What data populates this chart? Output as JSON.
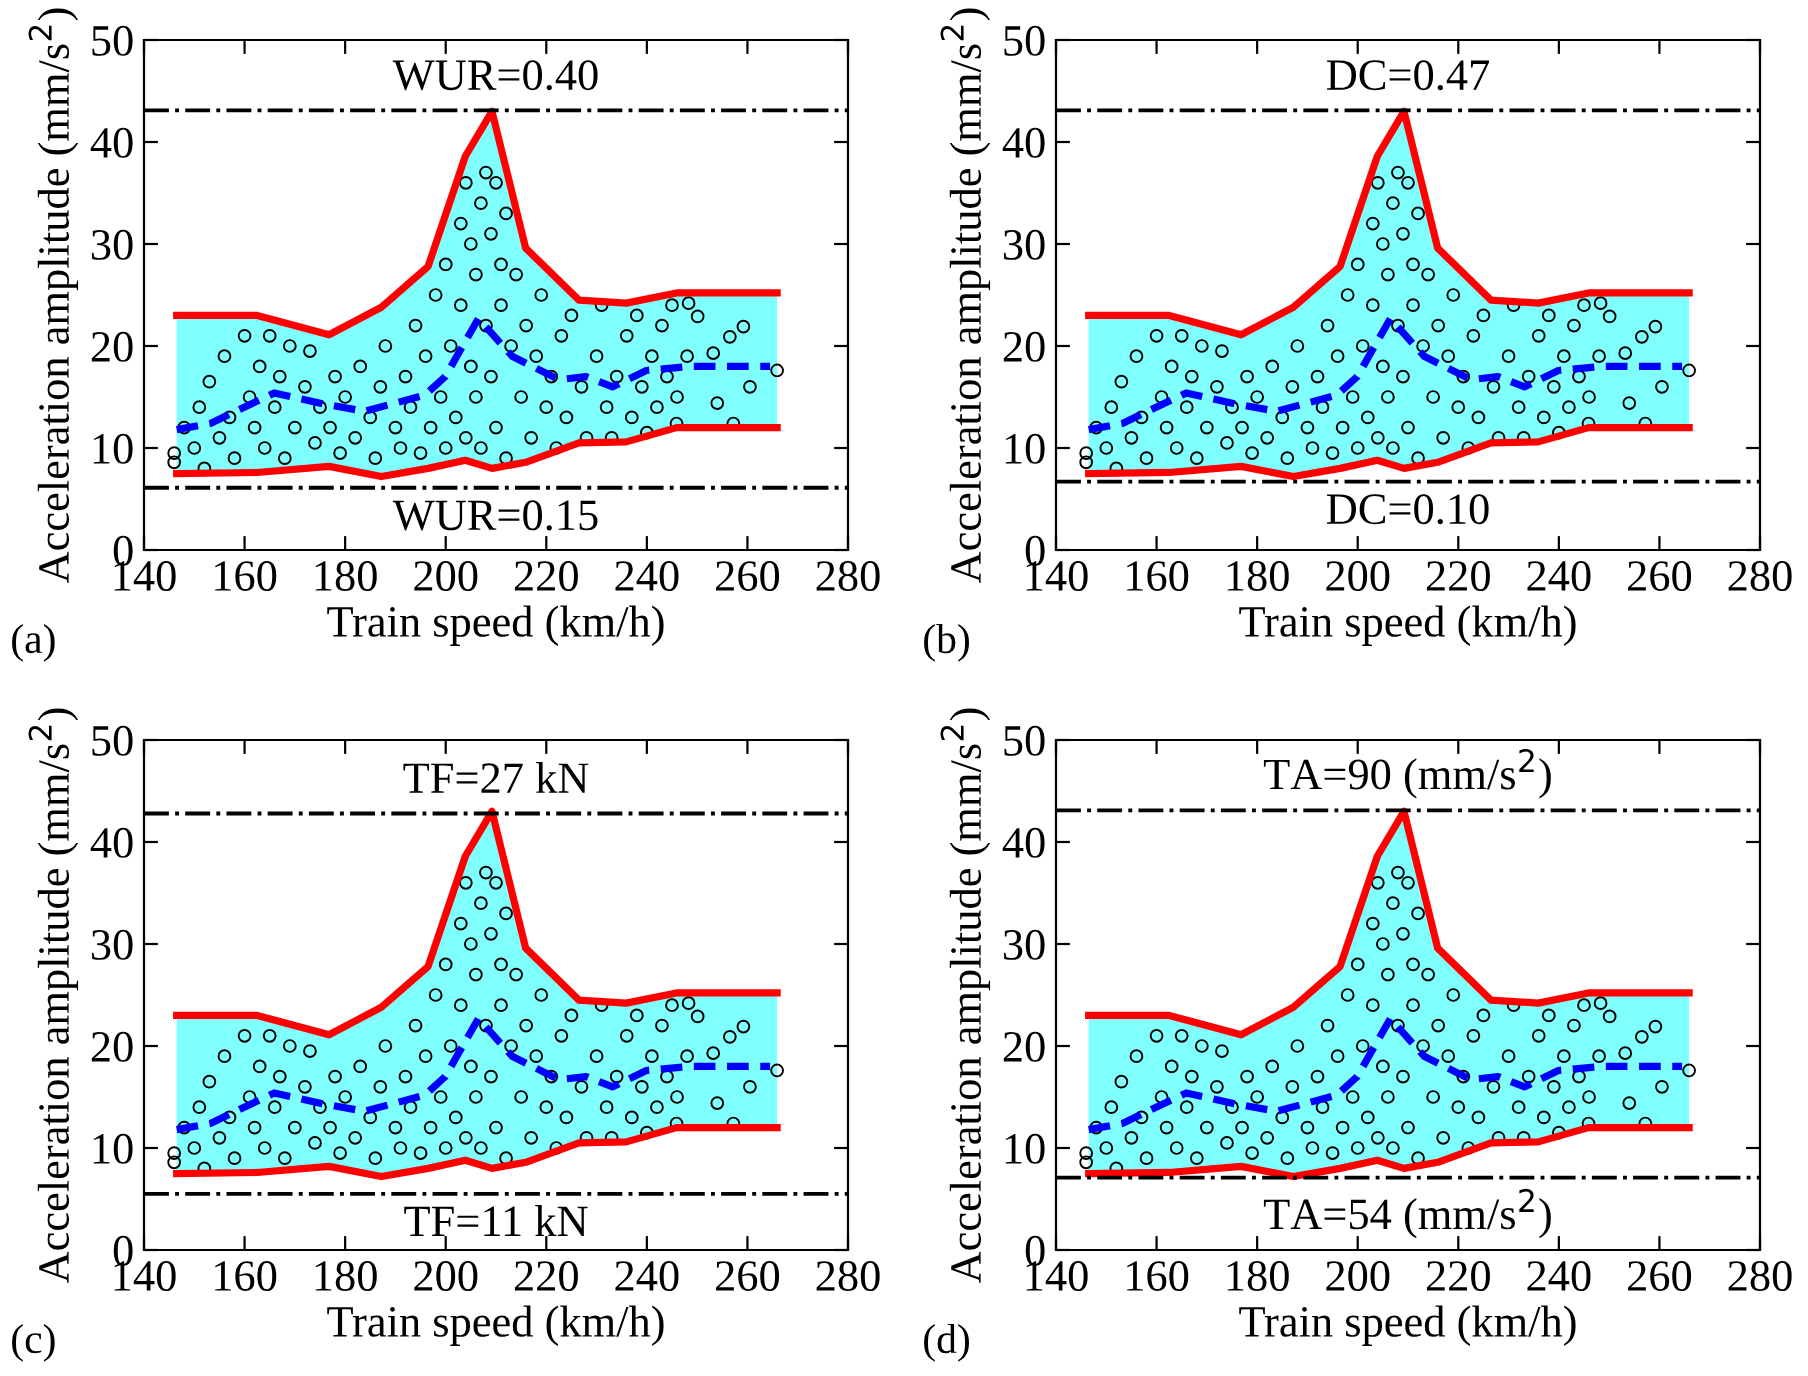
{
  "chart_data": [
    {
      "type": "scatter",
      "xlabel": "Train speed (km/h)",
      "ylabel": "Acceleration amplitude (mm/s$^{2}$)",
      "annotations": [
        "(a)",
        {
          "text": "WUR=0.40",
          "y": 43.1
        },
        {
          "text": "WUR=0.15",
          "y": 6.1
        }
      ],
      "xlim": [
        140,
        280
      ],
      "xticks": [
        140,
        160,
        180,
        200,
        220,
        240,
        260,
        280
      ],
      "ylim": [
        0,
        50
      ],
      "yticks": [
        0,
        10,
        20,
        30,
        40,
        50
      ],
      "ref_lines": [
        {
          "axis": "y",
          "value": 43.1,
          "color": "#000000",
          "line_style": "dashdot"
        },
        {
          "axis": "y",
          "value": 6.1,
          "color": "#000000",
          "line_style": "dashdot"
        }
      ],
      "series": [
        {
          "type": "area",
          "color": "#80ffff",
          "x": [
            146.5,
            162.5,
            176.8,
            187.2,
            196.5,
            203.9,
            209.2,
            215.9,
            226.5,
            235.9,
            245.9,
            265.9
          ],
          "values": [
            23.0,
            23.0,
            21.1,
            23.8,
            27.8,
            38.6,
            43.0,
            29.6,
            24.5,
            24.2,
            25.2,
            25.2
          ]
        },
        {
          "type": "line",
          "color": "#ff0000",
          "line_style": "solid",
          "x": [
            146.5,
            162.5,
            176.8,
            187.2,
            196.5,
            203.9,
            209.2,
            215.9,
            226.5,
            235.9,
            245.9,
            265.9
          ],
          "values": [
            23.0,
            23.0,
            21.1,
            23.8,
            27.8,
            38.6,
            43.0,
            29.6,
            24.5,
            24.2,
            25.2,
            25.2
          ]
        },
        {
          "type": "line",
          "color": "#ff0000",
          "line_style": "solid",
          "x": [
            146.5,
            162.5,
            176.8,
            187.2,
            196.5,
            203.9,
            209.2,
            215.9,
            226.5,
            235.9,
            245.9,
            265.9
          ],
          "values": [
            7.5,
            7.6,
            8.2,
            7.2,
            8.0,
            8.8,
            8.0,
            8.6,
            10.5,
            10.6,
            12.0,
            12.0
          ]
        },
        {
          "type": "scatter",
          "color": "#000000",
          "marker": "circle",
          "x": [
            146,
            146,
            148,
            150,
            151,
            152,
            153,
            155,
            156,
            157,
            158,
            160,
            161,
            162,
            163,
            164,
            165,
            166,
            167,
            168,
            169,
            170,
            172,
            173,
            174,
            175,
            177,
            178,
            179,
            180,
            182,
            183,
            185,
            186,
            187,
            188,
            190,
            191,
            192,
            193,
            194,
            195,
            196,
            197,
            198,
            199,
            200,
            200,
            201,
            202,
            203,
            203,
            204,
            204,
            205,
            205,
            206,
            206,
            207,
            207,
            208,
            208,
            209,
            209,
            210,
            210,
            211,
            211,
            212,
            212,
            213,
            214,
            215,
            216,
            217,
            218,
            219,
            220,
            221,
            222,
            223,
            224,
            225,
            227,
            228,
            230,
            231,
            232,
            233,
            234,
            236,
            237,
            238,
            239,
            240,
            241,
            242,
            243,
            244,
            245,
            245.9,
            246,
            248.3,
            248,
            250.1,
            253.2,
            254,
            256.5,
            257.2,
            259.2,
            260.5,
            265.9
          ],
          "values": [
            9.5,
            8.6,
            12,
            10,
            14,
            8,
            16.5,
            11,
            19,
            13,
            9,
            21,
            15,
            12,
            18,
            10,
            21,
            14,
            17,
            9,
            20,
            12,
            16,
            19.5,
            10.5,
            14,
            12,
            17,
            9.5,
            15,
            11,
            18,
            13,
            9,
            16,
            20,
            12,
            10,
            17,
            14,
            22,
            9.5,
            19,
            12,
            25,
            15,
            10,
            28,
            20,
            13,
            32,
            24,
            11,
            36,
            18,
            30,
            27,
            15,
            34,
            10,
            37,
            22,
            31,
            17,
            36,
            12,
            28,
            24,
            33,
            9,
            20,
            27,
            15,
            22,
            11,
            19,
            25,
            14,
            17,
            10,
            21,
            13,
            23,
            16,
            11,
            19,
            24,
            14,
            11,
            17,
            21,
            13,
            23,
            16,
            11.5,
            19,
            14,
            22,
            17,
            24,
            12.4,
            15,
            24.2,
            19,
            22.9,
            19.3,
            14.4,
            20.9,
            12.4,
            21.9,
            16.0,
            17.6
          ]
        },
        {
          "type": "line",
          "color": "#0000ff",
          "line_style": "dashed",
          "x": [
            146.5,
            153.2,
            165.9,
            175.9,
            183.9,
            195.9,
            199.9,
            206.5,
            213.2,
            222.5,
            227.9,
            233.2,
            239.9,
            248.5,
            264.5
          ],
          "values": [
            11.8,
            12.4,
            15.4,
            14.3,
            13.6,
            15.2,
            17.0,
            22.7,
            19.0,
            16.7,
            17.0,
            16.0,
            17.6,
            18.0,
            18.0
          ]
        }
      ]
    },
    {
      "type": "scatter",
      "xlabel": "Train speed (km/h)",
      "ylabel": "Acceleration amplitude (mm/s$^{2}$)",
      "annotations": [
        "(b)",
        {
          "text": "DC=0.47",
          "y": 43.1
        },
        {
          "text": "DC=0.10",
          "y": 6.7
        }
      ],
      "xlim": [
        140,
        280
      ],
      "xticks": [
        140,
        160,
        180,
        200,
        220,
        240,
        260,
        280
      ],
      "ylim": [
        0,
        50
      ],
      "yticks": [
        0,
        10,
        20,
        30,
        40,
        50
      ],
      "ref_lines": [
        {
          "axis": "y",
          "value": 43.1,
          "color": "#000000",
          "line_style": "dashdot"
        },
        {
          "axis": "y",
          "value": 6.7,
          "color": "#000000",
          "line_style": "dashdot"
        }
      ],
      "series": [
        {
          "type": "area",
          "color": "#80ffff",
          "x": [
            146.5,
            162.5,
            176.8,
            187.2,
            196.5,
            203.9,
            209.2,
            215.9,
            226.5,
            235.9,
            245.9,
            265.9
          ],
          "values": [
            23.0,
            23.0,
            21.1,
            23.8,
            27.8,
            38.6,
            43.0,
            29.6,
            24.5,
            24.2,
            25.2,
            25.2
          ]
        },
        {
          "type": "line",
          "color": "#ff0000",
          "line_style": "solid",
          "x": [
            146.5,
            162.5,
            176.8,
            187.2,
            196.5,
            203.9,
            209.2,
            215.9,
            226.5,
            235.9,
            245.9,
            265.9
          ],
          "values": [
            23.0,
            23.0,
            21.1,
            23.8,
            27.8,
            38.6,
            43.0,
            29.6,
            24.5,
            24.2,
            25.2,
            25.2
          ]
        },
        {
          "type": "line",
          "color": "#ff0000",
          "line_style": "solid",
          "x": [
            146.5,
            162.5,
            176.8,
            187.2,
            196.5,
            203.9,
            209.2,
            215.9,
            226.5,
            235.9,
            245.9,
            265.9
          ],
          "values": [
            7.5,
            7.6,
            8.2,
            7.2,
            8.0,
            8.8,
            8.0,
            8.6,
            10.5,
            10.6,
            12.0,
            12.0
          ]
        },
        {
          "type": "scatter",
          "color": "#000000",
          "marker": "circle",
          "x": [
            146,
            146,
            148,
            150,
            151,
            152,
            153,
            155,
            156,
            157,
            158,
            160,
            161,
            162,
            163,
            164,
            165,
            166,
            167,
            168,
            169,
            170,
            172,
            173,
            174,
            175,
            177,
            178,
            179,
            180,
            182,
            183,
            185,
            186,
            187,
            188,
            190,
            191,
            192,
            193,
            194,
            195,
            196,
            197,
            198,
            199,
            200,
            200,
            201,
            202,
            203,
            203,
            204,
            204,
            205,
            205,
            206,
            206,
            207,
            207,
            208,
            208,
            209,
            209,
            210,
            210,
            211,
            211,
            212,
            212,
            213,
            214,
            215,
            216,
            217,
            218,
            219,
            220,
            221,
            222,
            223,
            224,
            225,
            227,
            228,
            230,
            231,
            232,
            233,
            234,
            236,
            237,
            238,
            239,
            240,
            241,
            242,
            243,
            244,
            245,
            245.9,
            246,
            248.3,
            248,
            250.1,
            253.2,
            254,
            256.5,
            257.2,
            259.2,
            260.5,
            265.9
          ],
          "values": [
            9.5,
            8.6,
            12,
            10,
            14,
            8,
            16.5,
            11,
            19,
            13,
            9,
            21,
            15,
            12,
            18,
            10,
            21,
            14,
            17,
            9,
            20,
            12,
            16,
            19.5,
            10.5,
            14,
            12,
            17,
            9.5,
            15,
            11,
            18,
            13,
            9,
            16,
            20,
            12,
            10,
            17,
            14,
            22,
            9.5,
            19,
            12,
            25,
            15,
            10,
            28,
            20,
            13,
            32,
            24,
            11,
            36,
            18,
            30,
            27,
            15,
            34,
            10,
            37,
            22,
            31,
            17,
            36,
            12,
            28,
            24,
            33,
            9,
            20,
            27,
            15,
            22,
            11,
            19,
            25,
            14,
            17,
            10,
            21,
            13,
            23,
            16,
            11,
            19,
            24,
            14,
            11,
            17,
            21,
            13,
            23,
            16,
            11.5,
            19,
            14,
            22,
            17,
            24,
            12.4,
            15,
            24.2,
            19,
            22.9,
            19.3,
            14.4,
            20.9,
            12.4,
            21.9,
            16.0,
            17.6
          ]
        },
        {
          "type": "line",
          "color": "#0000ff",
          "line_style": "dashed",
          "x": [
            146.5,
            153.2,
            165.9,
            175.9,
            183.9,
            195.9,
            199.9,
            206.5,
            213.2,
            222.5,
            227.9,
            233.2,
            239.9,
            248.5,
            264.5
          ],
          "values": [
            11.8,
            12.4,
            15.4,
            14.3,
            13.6,
            15.2,
            17.0,
            22.7,
            19.0,
            16.7,
            17.0,
            16.0,
            17.6,
            18.0,
            18.0
          ]
        }
      ]
    },
    {
      "type": "scatter",
      "xlabel": "Train speed (km/h)",
      "ylabel": "Acceleration amplitude (mm/s$^{2}$)",
      "annotations": [
        "(c)",
        {
          "text": "TF=27 kN",
          "y": 42.8
        },
        {
          "text": "TF=11 kN",
          "y": 5.5
        }
      ],
      "xlim": [
        140,
        280
      ],
      "xticks": [
        140,
        160,
        180,
        200,
        220,
        240,
        260,
        280
      ],
      "ylim": [
        0,
        50
      ],
      "yticks": [
        0,
        10,
        20,
        30,
        40,
        50
      ],
      "ref_lines": [
        {
          "axis": "y",
          "value": 42.8,
          "color": "#000000",
          "line_style": "dashdot"
        },
        {
          "axis": "y",
          "value": 5.5,
          "color": "#000000",
          "line_style": "dashdot"
        }
      ],
      "series": [
        {
          "type": "area",
          "color": "#80ffff",
          "x": [
            146.5,
            162.5,
            176.8,
            187.2,
            196.5,
            203.9,
            209.2,
            215.9,
            226.5,
            235.9,
            245.9,
            265.9
          ],
          "values": [
            23.0,
            23.0,
            21.1,
            23.8,
            27.8,
            38.6,
            43.0,
            29.6,
            24.5,
            24.2,
            25.2,
            25.2
          ]
        },
        {
          "type": "line",
          "color": "#ff0000",
          "line_style": "solid",
          "x": [
            146.5,
            162.5,
            176.8,
            187.2,
            196.5,
            203.9,
            209.2,
            215.9,
            226.5,
            235.9,
            245.9,
            265.9
          ],
          "values": [
            23.0,
            23.0,
            21.1,
            23.8,
            27.8,
            38.6,
            43.0,
            29.6,
            24.5,
            24.2,
            25.2,
            25.2
          ]
        },
        {
          "type": "line",
          "color": "#ff0000",
          "line_style": "solid",
          "x": [
            146.5,
            162.5,
            176.8,
            187.2,
            196.5,
            203.9,
            209.2,
            215.9,
            226.5,
            235.9,
            245.9,
            265.9
          ],
          "values": [
            7.5,
            7.6,
            8.2,
            7.2,
            8.0,
            8.8,
            8.0,
            8.6,
            10.5,
            10.6,
            12.0,
            12.0
          ]
        },
        {
          "type": "scatter",
          "color": "#000000",
          "marker": "circle",
          "x": [
            146,
            146,
            148,
            150,
            151,
            152,
            153,
            155,
            156,
            157,
            158,
            160,
            161,
            162,
            163,
            164,
            165,
            166,
            167,
            168,
            169,
            170,
            172,
            173,
            174,
            175,
            177,
            178,
            179,
            180,
            182,
            183,
            185,
            186,
            187,
            188,
            190,
            191,
            192,
            193,
            194,
            195,
            196,
            197,
            198,
            199,
            200,
            200,
            201,
            202,
            203,
            203,
            204,
            204,
            205,
            205,
            206,
            206,
            207,
            207,
            208,
            208,
            209,
            209,
            210,
            210,
            211,
            211,
            212,
            212,
            213,
            214,
            215,
            216,
            217,
            218,
            219,
            220,
            221,
            222,
            223,
            224,
            225,
            227,
            228,
            230,
            231,
            232,
            233,
            234,
            236,
            237,
            238,
            239,
            240,
            241,
            242,
            243,
            244,
            245,
            245.9,
            246,
            248.3,
            248,
            250.1,
            253.2,
            254,
            256.5,
            257.2,
            259.2,
            260.5,
            265.9
          ],
          "values": [
            9.5,
            8.6,
            12,
            10,
            14,
            8,
            16.5,
            11,
            19,
            13,
            9,
            21,
            15,
            12,
            18,
            10,
            21,
            14,
            17,
            9,
            20,
            12,
            16,
            19.5,
            10.5,
            14,
            12,
            17,
            9.5,
            15,
            11,
            18,
            13,
            9,
            16,
            20,
            12,
            10,
            17,
            14,
            22,
            9.5,
            19,
            12,
            25,
            15,
            10,
            28,
            20,
            13,
            32,
            24,
            11,
            36,
            18,
            30,
            27,
            15,
            34,
            10,
            37,
            22,
            31,
            17,
            36,
            12,
            28,
            24,
            33,
            9,
            20,
            27,
            15,
            22,
            11,
            19,
            25,
            14,
            17,
            10,
            21,
            13,
            23,
            16,
            11,
            19,
            24,
            14,
            11,
            17,
            21,
            13,
            23,
            16,
            11.5,
            19,
            14,
            22,
            17,
            24,
            12.4,
            15,
            24.2,
            19,
            22.9,
            19.3,
            14.4,
            20.9,
            12.4,
            21.9,
            16.0,
            17.6
          ]
        },
        {
          "type": "line",
          "color": "#0000ff",
          "line_style": "dashed",
          "x": [
            146.5,
            153.2,
            165.9,
            175.9,
            183.9,
            195.9,
            199.9,
            206.5,
            213.2,
            222.5,
            227.9,
            233.2,
            239.9,
            248.5,
            264.5
          ],
          "values": [
            11.8,
            12.4,
            15.4,
            14.3,
            13.6,
            15.2,
            17.0,
            22.7,
            19.0,
            16.7,
            17.0,
            16.0,
            17.6,
            18.0,
            18.0
          ]
        }
      ]
    },
    {
      "type": "scatter",
      "xlabel": "Train speed (km/h)",
      "ylabel": "Acceleration amplitude (mm/s$^{2}$)",
      "annotations": [
        "(d)",
        {
          "text": "TA=90 (mm/s$^{2}$)",
          "y": 43.1
        },
        {
          "text": "TA=54 (mm/s$^{2}$)",
          "y": 7.1
        }
      ],
      "xlim": [
        140,
        280
      ],
      "xticks": [
        140,
        160,
        180,
        200,
        220,
        240,
        260,
        280
      ],
      "ylim": [
        0,
        50
      ],
      "yticks": [
        0,
        10,
        20,
        30,
        40,
        50
      ],
      "ref_lines": [
        {
          "axis": "y",
          "value": 43.1,
          "color": "#000000",
          "line_style": "dashdot"
        },
        {
          "axis": "y",
          "value": 7.1,
          "color": "#000000",
          "line_style": "dashdot"
        }
      ],
      "series": [
        {
          "type": "area",
          "color": "#80ffff",
          "x": [
            146.5,
            162.5,
            176.8,
            187.2,
            196.5,
            203.9,
            209.2,
            215.9,
            226.5,
            235.9,
            245.9,
            265.9
          ],
          "values": [
            23.0,
            23.0,
            21.1,
            23.8,
            27.8,
            38.6,
            43.0,
            29.6,
            24.5,
            24.2,
            25.2,
            25.2
          ]
        },
        {
          "type": "line",
          "color": "#ff0000",
          "line_style": "solid",
          "x": [
            146.5,
            162.5,
            176.8,
            187.2,
            196.5,
            203.9,
            209.2,
            215.9,
            226.5,
            235.9,
            245.9,
            265.9
          ],
          "values": [
            23.0,
            23.0,
            21.1,
            23.8,
            27.8,
            38.6,
            43.0,
            29.6,
            24.5,
            24.2,
            25.2,
            25.2
          ]
        },
        {
          "type": "line",
          "color": "#ff0000",
          "line_style": "solid",
          "x": [
            146.5,
            162.5,
            176.8,
            187.2,
            196.5,
            203.9,
            209.2,
            215.9,
            226.5,
            235.9,
            245.9,
            265.9
          ],
          "values": [
            7.5,
            7.6,
            8.2,
            7.2,
            8.0,
            8.8,
            8.0,
            8.6,
            10.5,
            10.6,
            12.0,
            12.0
          ]
        },
        {
          "type": "scatter",
          "color": "#000000",
          "marker": "circle",
          "x": [
            146,
            146,
            148,
            150,
            151,
            152,
            153,
            155,
            156,
            157,
            158,
            160,
            161,
            162,
            163,
            164,
            165,
            166,
            167,
            168,
            169,
            170,
            172,
            173,
            174,
            175,
            177,
            178,
            179,
            180,
            182,
            183,
            185,
            186,
            187,
            188,
            190,
            191,
            192,
            193,
            194,
            195,
            196,
            197,
            198,
            199,
            200,
            200,
            201,
            202,
            203,
            203,
            204,
            204,
            205,
            205,
            206,
            206,
            207,
            207,
            208,
            208,
            209,
            209,
            210,
            210,
            211,
            211,
            212,
            212,
            213,
            214,
            215,
            216,
            217,
            218,
            219,
            220,
            221,
            222,
            223,
            224,
            225,
            227,
            228,
            230,
            231,
            232,
            233,
            234,
            236,
            237,
            238,
            239,
            240,
            241,
            242,
            243,
            244,
            245,
            245.9,
            246,
            248.3,
            248,
            250.1,
            253.2,
            254,
            256.5,
            257.2,
            259.2,
            260.5,
            265.9
          ],
          "values": [
            9.5,
            8.6,
            12,
            10,
            14,
            8,
            16.5,
            11,
            19,
            13,
            9,
            21,
            15,
            12,
            18,
            10,
            21,
            14,
            17,
            9,
            20,
            12,
            16,
            19.5,
            10.5,
            14,
            12,
            17,
            9.5,
            15,
            11,
            18,
            13,
            9,
            16,
            20,
            12,
            10,
            17,
            14,
            22,
            9.5,
            19,
            12,
            25,
            15,
            10,
            28,
            20,
            13,
            32,
            24,
            11,
            36,
            18,
            30,
            27,
            15,
            34,
            10,
            37,
            22,
            31,
            17,
            36,
            12,
            28,
            24,
            33,
            9,
            20,
            27,
            15,
            22,
            11,
            19,
            25,
            14,
            17,
            10,
            21,
            13,
            23,
            16,
            11,
            19,
            24,
            14,
            11,
            17,
            21,
            13,
            23,
            16,
            11.5,
            19,
            14,
            22,
            17,
            24,
            12.4,
            15,
            24.2,
            19,
            22.9,
            19.3,
            14.4,
            20.9,
            12.4,
            21.9,
            16.0,
            17.6
          ]
        },
        {
          "type": "line",
          "color": "#0000ff",
          "line_style": "dashed",
          "x": [
            146.5,
            153.2,
            165.9,
            175.9,
            183.9,
            195.9,
            199.9,
            206.5,
            213.2,
            222.5,
            227.9,
            233.2,
            239.9,
            248.5,
            264.5
          ],
          "values": [
            11.8,
            12.4,
            15.4,
            14.3,
            13.6,
            15.2,
            17.0,
            22.7,
            19.0,
            16.7,
            17.0,
            16.0,
            17.6,
            18.0,
            18.0
          ]
        }
      ]
    }
  ]
}
